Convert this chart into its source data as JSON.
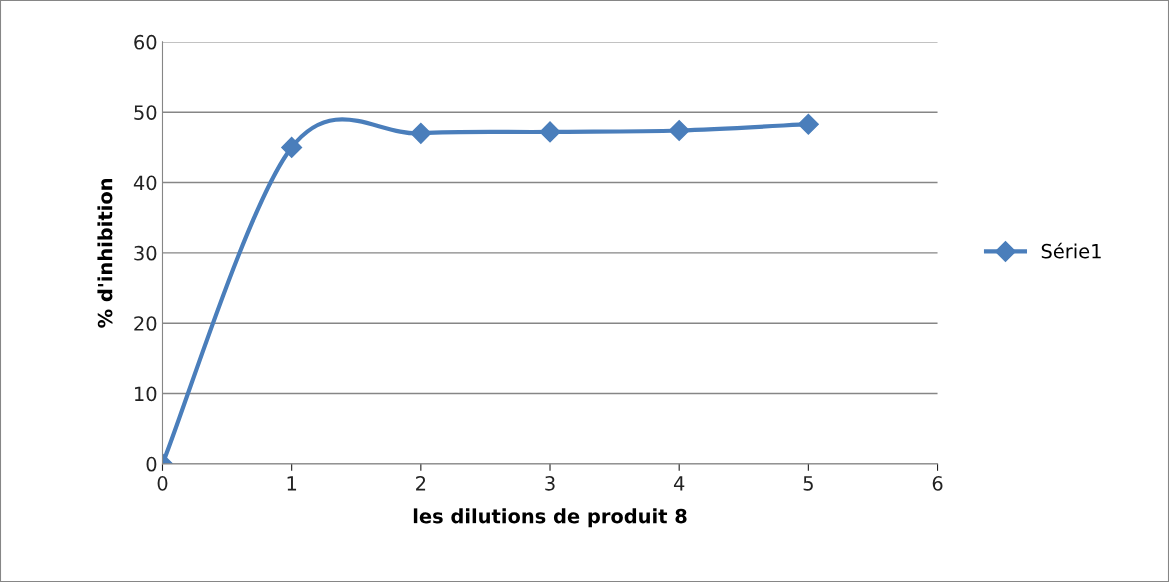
{
  "chart_data": {
    "type": "line",
    "xlabel": "les dilutions de produit 8",
    "ylabel": "% d'inhibition",
    "x": [
      0,
      1,
      2,
      3,
      4,
      5
    ],
    "series": [
      {
        "name": "Série1",
        "color": "#4a7ebb",
        "values": [
          0,
          45,
          47,
          47.2,
          47.4,
          48.3
        ]
      }
    ],
    "xlim": [
      0,
      6
    ],
    "xticks": [
      0,
      1,
      2,
      3,
      4,
      5,
      6
    ],
    "ylim": [
      0,
      60
    ],
    "yticks": [
      0,
      10,
      20,
      30,
      40,
      50,
      60
    ],
    "grid": "y",
    "legend": "right",
    "marker": "diamond",
    "line_style": "solid"
  }
}
